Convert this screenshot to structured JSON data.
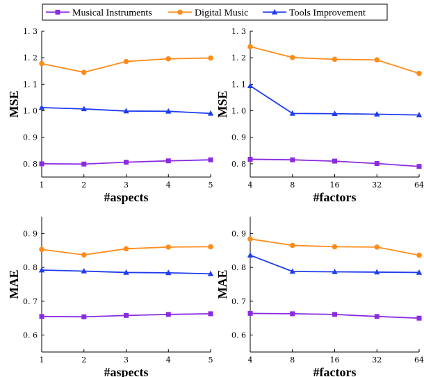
{
  "legend": {
    "items": [
      {
        "label": "Musical Instruments",
        "color": "#8a2be2",
        "marker": "square"
      },
      {
        "label": "Digital Music",
        "color": "#ff8c1a",
        "marker": "circle"
      },
      {
        "label": "Tools Improvement",
        "color": "#1f3cf0",
        "marker": "triangle"
      }
    ]
  },
  "chart_data": [
    {
      "type": "line",
      "xlabel": "#aspects",
      "ylabel": "MSE",
      "categories": [
        "1",
        "2",
        "3",
        "4",
        "5"
      ],
      "ylim": [
        0.75,
        1.3
      ],
      "yticks": [
        "0. 8",
        "0. 9",
        "1. 0",
        "1. 1",
        "1. 2",
        "1. 3"
      ],
      "ytick_values": [
        0.8,
        0.9,
        1.0,
        1.1,
        1.2,
        1.3
      ],
      "series": [
        {
          "name": "Musical Instruments",
          "values": [
            0.8,
            0.799,
            0.806,
            0.811,
            0.815
          ]
        },
        {
          "name": "Digital Music",
          "values": [
            1.178,
            1.145,
            1.186,
            1.196,
            1.199
          ]
        },
        {
          "name": "Tools Improvement",
          "values": [
            1.012,
            1.007,
            0.999,
            0.998,
            0.99
          ]
        }
      ]
    },
    {
      "type": "line",
      "xlabel": "#factors",
      "ylabel": "MSE",
      "categories": [
        "4",
        "8",
        "16",
        "32",
        "64"
      ],
      "ylim": [
        0.75,
        1.3
      ],
      "yticks": [
        "0. 8",
        "0. 9",
        "1. 0",
        "1. 1",
        "1. 2",
        "1. 3"
      ],
      "ytick_values": [
        0.8,
        0.9,
        1.0,
        1.1,
        1.2,
        1.3
      ],
      "series": [
        {
          "name": "Musical Instruments",
          "values": [
            0.817,
            0.815,
            0.81,
            0.801,
            0.79
          ]
        },
        {
          "name": "Digital Music",
          "values": [
            1.242,
            1.201,
            1.194,
            1.192,
            1.141
          ]
        },
        {
          "name": "Tools Improvement",
          "values": [
            1.094,
            0.99,
            0.989,
            0.987,
            0.984
          ]
        }
      ]
    },
    {
      "type": "line",
      "xlabel": "#aspects",
      "ylabel": "MAE",
      "categories": [
        "1",
        "2",
        "3",
        "4",
        "5"
      ],
      "ylim": [
        0.55,
        0.95
      ],
      "yticks": [
        "0. 6",
        "0. 7",
        "0. 8",
        "0. 9"
      ],
      "ytick_values": [
        0.6,
        0.7,
        0.8,
        0.9
      ],
      "series": [
        {
          "name": "Musical Instruments",
          "values": [
            0.655,
            0.654,
            0.658,
            0.661,
            0.663
          ]
        },
        {
          "name": "Digital Music",
          "values": [
            0.853,
            0.837,
            0.855,
            0.86,
            0.861
          ]
        },
        {
          "name": "Tools Improvement",
          "values": [
            0.792,
            0.789,
            0.785,
            0.784,
            0.781
          ]
        }
      ]
    },
    {
      "type": "line",
      "xlabel": "#factors",
      "ylabel": "MAE",
      "categories": [
        "4",
        "8",
        "16",
        "32",
        "64"
      ],
      "ylim": [
        0.55,
        0.95
      ],
      "yticks": [
        "0. 6",
        "0. 7",
        "0. 8",
        "0. 9"
      ],
      "ytick_values": [
        0.6,
        0.7,
        0.8,
        0.9
      ],
      "series": [
        {
          "name": "Musical Instruments",
          "values": [
            0.664,
            0.663,
            0.661,
            0.655,
            0.65
          ]
        },
        {
          "name": "Digital Music",
          "values": [
            0.884,
            0.865,
            0.861,
            0.86,
            0.836
          ]
        },
        {
          "name": "Tools Improvement",
          "values": [
            0.836,
            0.788,
            0.787,
            0.786,
            0.785
          ]
        }
      ]
    }
  ]
}
